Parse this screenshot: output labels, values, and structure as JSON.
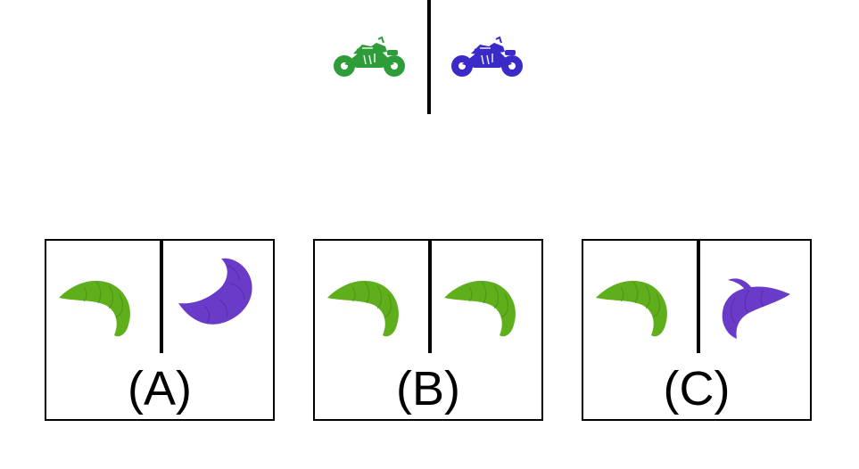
{
  "example": {
    "left_object": {
      "icon": "motorcycle-icon",
      "color": "#2f9c3a"
    },
    "right_object": {
      "icon": "motorcycle-icon",
      "color": "#3a2bc9"
    }
  },
  "options": [
    {
      "label": "(A)",
      "left_object": {
        "icon": "croissant-icon",
        "color": "#5fae1c"
      },
      "right_object": {
        "icon": "croissant-icon",
        "color": "#6a3ac8"
      }
    },
    {
      "label": "(B)",
      "left_object": {
        "icon": "croissant-icon",
        "color": "#5fae1c"
      },
      "right_object": {
        "icon": "croissant-icon",
        "color": "#5fae1c"
      }
    },
    {
      "label": "(C)",
      "left_object": {
        "icon": "croissant-icon",
        "color": "#5fae1c"
      },
      "right_object": {
        "icon": "croissant-icon",
        "color": "#6a3ac8"
      }
    }
  ]
}
